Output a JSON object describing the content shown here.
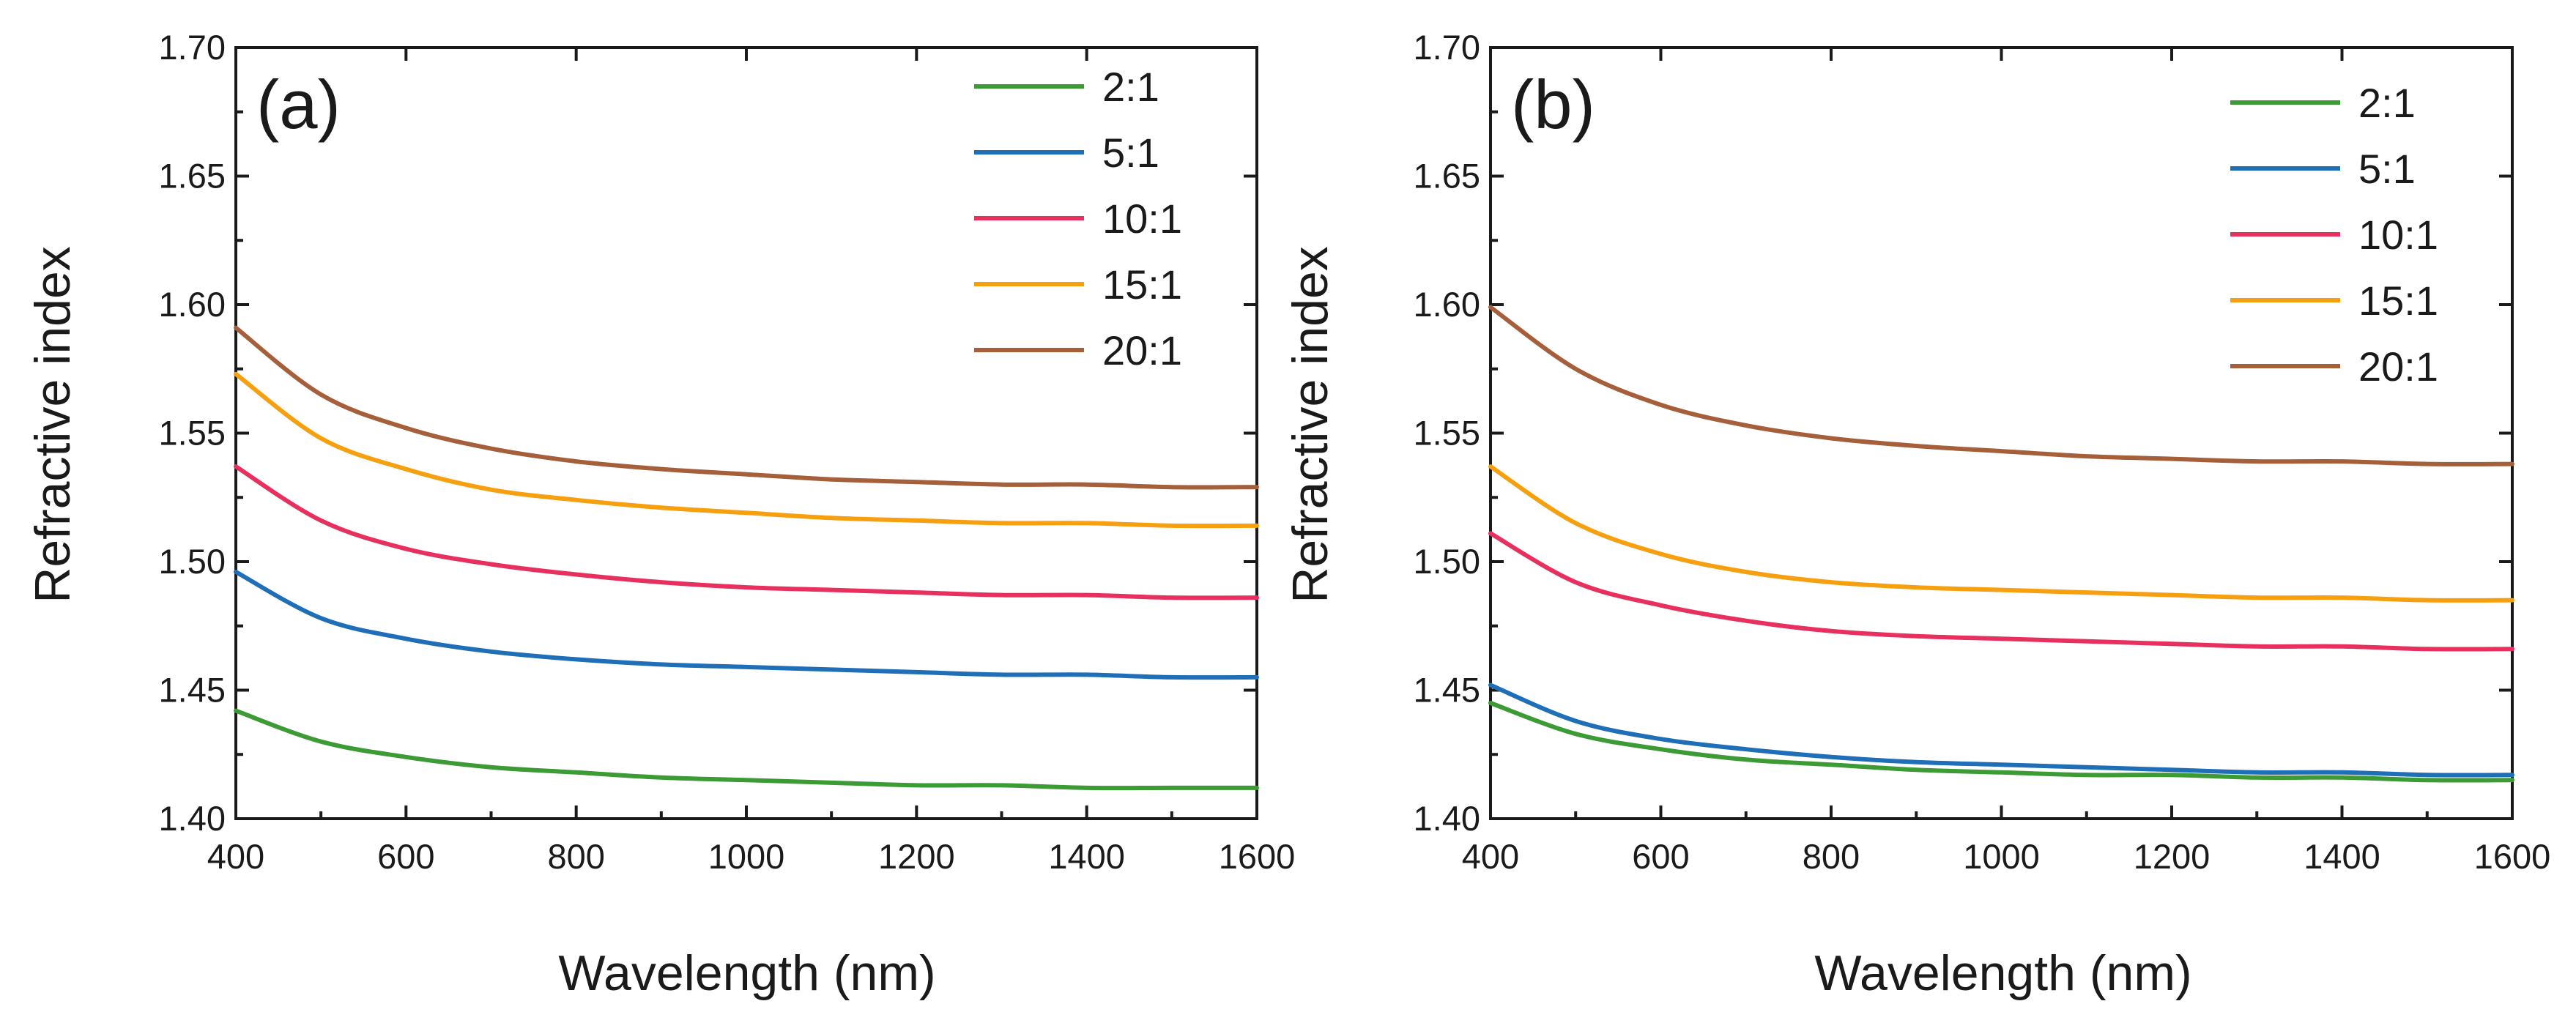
{
  "chart_data": [
    {
      "type": "line",
      "panel_label": "(a)",
      "xlabel": "Wavelength (nm)",
      "ylabel": "Refractive index",
      "xlim": [
        400,
        1600
      ],
      "ylim": [
        1.4,
        1.7
      ],
      "xticks": [
        "400",
        "600",
        "800",
        "1000",
        "1200",
        "1400",
        "1600"
      ],
      "yticks": [
        "1.40",
        "1.45",
        "1.50",
        "1.55",
        "1.60",
        "1.65",
        "1.70"
      ],
      "legend_position": "top-right",
      "x": [
        400,
        500,
        600,
        700,
        800,
        900,
        1000,
        1100,
        1200,
        1300,
        1400,
        1500,
        1600
      ],
      "series": [
        {
          "name": "2:1",
          "color": "#3c9b35",
          "values": [
            1.442,
            1.43,
            1.424,
            1.42,
            1.418,
            1.416,
            1.415,
            1.414,
            1.413,
            1.413,
            1.412,
            1.412,
            1.412
          ]
        },
        {
          "name": "5:1",
          "color": "#1f6eb8",
          "values": [
            1.496,
            1.478,
            1.47,
            1.465,
            1.462,
            1.46,
            1.459,
            1.458,
            1.457,
            1.456,
            1.456,
            1.455,
            1.455
          ]
        },
        {
          "name": "10:1",
          "color": "#e8305f",
          "values": [
            1.537,
            1.516,
            1.505,
            1.499,
            1.495,
            1.492,
            1.49,
            1.489,
            1.488,
            1.487,
            1.487,
            1.486,
            1.486
          ]
        },
        {
          "name": "15:1",
          "color": "#f7a00f",
          "values": [
            1.573,
            1.548,
            1.536,
            1.528,
            1.524,
            1.521,
            1.519,
            1.517,
            1.516,
            1.515,
            1.515,
            1.514,
            1.514
          ]
        },
        {
          "name": "20:1",
          "color": "#a65f3b",
          "values": [
            1.591,
            1.565,
            1.552,
            1.544,
            1.539,
            1.536,
            1.534,
            1.532,
            1.531,
            1.53,
            1.53,
            1.529,
            1.529
          ]
        }
      ]
    },
    {
      "type": "line",
      "panel_label": "(b)",
      "xlabel": "Wavelength (nm)",
      "ylabel": "Refractive index",
      "xlim": [
        400,
        1600
      ],
      "ylim": [
        1.4,
        1.7
      ],
      "xticks": [
        "400",
        "600",
        "800",
        "1000",
        "1200",
        "1400",
        "1600"
      ],
      "yticks": [
        "1.40",
        "1.45",
        "1.50",
        "1.55",
        "1.60",
        "1.65",
        "1.70"
      ],
      "legend_position": "top-right",
      "x": [
        400,
        500,
        600,
        700,
        800,
        900,
        1000,
        1100,
        1200,
        1300,
        1400,
        1500,
        1600
      ],
      "series": [
        {
          "name": "2:1",
          "color": "#3c9b35",
          "values": [
            1.445,
            1.433,
            1.427,
            1.423,
            1.421,
            1.419,
            1.418,
            1.417,
            1.417,
            1.416,
            1.416,
            1.415,
            1.415
          ]
        },
        {
          "name": "5:1",
          "color": "#1f6eb8",
          "values": [
            1.452,
            1.438,
            1.431,
            1.427,
            1.424,
            1.422,
            1.421,
            1.42,
            1.419,
            1.418,
            1.418,
            1.417,
            1.417
          ]
        },
        {
          "name": "10:1",
          "color": "#e8305f",
          "values": [
            1.511,
            1.492,
            1.483,
            1.477,
            1.473,
            1.471,
            1.47,
            1.469,
            1.468,
            1.467,
            1.467,
            1.466,
            1.466
          ]
        },
        {
          "name": "15:1",
          "color": "#f7a00f",
          "values": [
            1.537,
            1.515,
            1.503,
            1.496,
            1.492,
            1.49,
            1.489,
            1.488,
            1.487,
            1.486,
            1.486,
            1.485,
            1.485
          ]
        },
        {
          "name": "20:1",
          "color": "#a65f3b",
          "values": [
            1.599,
            1.575,
            1.561,
            1.553,
            1.548,
            1.545,
            1.543,
            1.541,
            1.54,
            1.539,
            1.539,
            1.538,
            1.538
          ]
        }
      ]
    }
  ]
}
